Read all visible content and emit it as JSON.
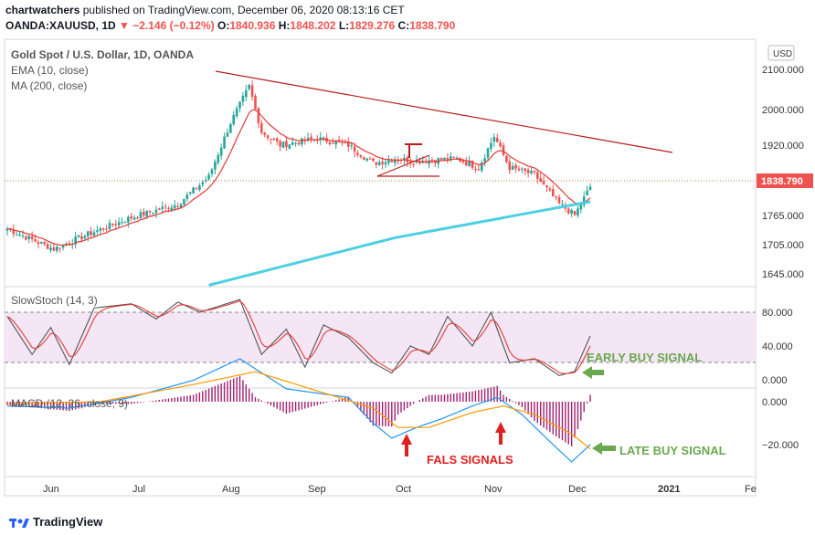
{
  "header": {
    "author": "chartwatchers",
    "published_text": "published on TradingView.com, December 06, 2020 08:13:16 CET",
    "symbol": "OANDA:XAUUSD, 1D",
    "change": "▼ −2.146 (−0.12%)",
    "o_label": "O:",
    "o_value": "1840.936",
    "h_label": "H:",
    "h_value": "1848.202",
    "l_label": "L:",
    "l_value": "1829.276",
    "c_label": "C:",
    "c_value": "1838.790"
  },
  "legend": {
    "title": "Gold Spot / U.S. Dollar, 1D, OANDA",
    "ema": "EMA (10, close)",
    "ma": "MA (200, close)",
    "stoch": "SlowStoch (14, 3)",
    "macd": "MACD (12, 26, close, 9)"
  },
  "price_axis": {
    "unit_badge": "USD",
    "ticks": [
      "2100.000",
      "2000.000",
      "1920.000",
      "1838.790",
      "1765.000",
      "1705.000",
      "1645.000"
    ],
    "last_price": "1838.790",
    "last_price_color": "#ef5350"
  },
  "stoch_axis": {
    "ticks": [
      "80.000",
      "40.000",
      "0.000"
    ]
  },
  "macd_axis": {
    "ticks": [
      "0.000",
      "−20.000"
    ]
  },
  "time_axis": {
    "labels": [
      "Jun",
      "Jul",
      "Aug",
      "Sep",
      "Oct",
      "Nov",
      "Dec",
      "2021",
      "Fe"
    ]
  },
  "annotations": {
    "early": "EARLY BUY SIGNAL",
    "late": "LATE BUY SIGNAL",
    "false": "FALS SIGNALS",
    "green": "#6aa84f",
    "red": "#e02020"
  },
  "colors": {
    "up": "#26a69a",
    "down": "#ef5350",
    "ema": "#e53935",
    "ma": "#4dd0e1",
    "trend": "#b71c1c",
    "stoch_k": "#555555",
    "stoch_d": "#e53935",
    "macd": "#2196f3",
    "signal": "#ff9800",
    "hist": "#a0206f"
  },
  "chart_data": {
    "type": "candlestick",
    "title": "Gold Spot / U.S. Dollar, 1D, OANDA",
    "price_range": [
      1600,
      2140
    ],
    "close_keyframes": [
      {
        "t": 0,
        "v": 1745
      },
      {
        "t": 10,
        "v": 1715
      },
      {
        "t": 15,
        "v": 1700
      },
      {
        "t": 25,
        "v": 1730
      },
      {
        "t": 40,
        "v": 1770
      },
      {
        "t": 55,
        "v": 1800
      },
      {
        "t": 65,
        "v": 1860
      },
      {
        "t": 72,
        "v": 1980
      },
      {
        "t": 78,
        "v": 2060
      },
      {
        "t": 82,
        "v": 1960
      },
      {
        "t": 88,
        "v": 1930
      },
      {
        "t": 100,
        "v": 1945
      },
      {
        "t": 110,
        "v": 1930
      },
      {
        "t": 118,
        "v": 1890
      },
      {
        "t": 125,
        "v": 1900
      },
      {
        "t": 132,
        "v": 1895
      },
      {
        "t": 145,
        "v": 1900
      },
      {
        "t": 152,
        "v": 1880
      },
      {
        "t": 157,
        "v": 1950
      },
      {
        "t": 162,
        "v": 1880
      },
      {
        "t": 170,
        "v": 1865
      },
      {
        "t": 178,
        "v": 1800
      },
      {
        "t": 183,
        "v": 1775
      },
      {
        "t": 188,
        "v": 1838
      }
    ],
    "ma200_keyframes": [
      {
        "t": 65,
        "v": 1620
      },
      {
        "t": 125,
        "v": 1725
      },
      {
        "t": 188,
        "v": 1805
      }
    ],
    "stoch_keyframes": [
      {
        "t": 0,
        "v": 75
      },
      {
        "t": 8,
        "v": 30
      },
      {
        "t": 14,
        "v": 62
      },
      {
        "t": 20,
        "v": 18
      },
      {
        "t": 28,
        "v": 85
      },
      {
        "t": 40,
        "v": 90
      },
      {
        "t": 48,
        "v": 72
      },
      {
        "t": 55,
        "v": 92
      },
      {
        "t": 62,
        "v": 80
      },
      {
        "t": 75,
        "v": 95
      },
      {
        "t": 82,
        "v": 30
      },
      {
        "t": 90,
        "v": 60
      },
      {
        "t": 96,
        "v": 15
      },
      {
        "t": 102,
        "v": 65
      },
      {
        "t": 110,
        "v": 50
      },
      {
        "t": 118,
        "v": 20
      },
      {
        "t": 124,
        "v": 8
      },
      {
        "t": 130,
        "v": 40
      },
      {
        "t": 136,
        "v": 30
      },
      {
        "t": 142,
        "v": 75
      },
      {
        "t": 150,
        "v": 40
      },
      {
        "t": 156,
        "v": 80
      },
      {
        "t": 162,
        "v": 20
      },
      {
        "t": 170,
        "v": 25
      },
      {
        "t": 178,
        "v": 5
      },
      {
        "t": 183,
        "v": 10
      },
      {
        "t": 188,
        "v": 52
      }
    ],
    "macd_keyframes": [
      {
        "t": 0,
        "v": -2
      },
      {
        "t": 20,
        "v": -3
      },
      {
        "t": 40,
        "v": 2
      },
      {
        "t": 60,
        "v": 10
      },
      {
        "t": 75,
        "v": 20
      },
      {
        "t": 90,
        "v": 6
      },
      {
        "t": 110,
        "v": 2
      },
      {
        "t": 118,
        "v": -10
      },
      {
        "t": 124,
        "v": -17
      },
      {
        "t": 132,
        "v": -12
      },
      {
        "t": 140,
        "v": -8
      },
      {
        "t": 150,
        "v": -2
      },
      {
        "t": 158,
        "v": 2
      },
      {
        "t": 166,
        "v": -6
      },
      {
        "t": 176,
        "v": -20
      },
      {
        "t": 182,
        "v": -28
      },
      {
        "t": 188,
        "v": -20
      }
    ],
    "signal_keyframes": [
      {
        "t": 0,
        "v": -1
      },
      {
        "t": 30,
        "v": 0
      },
      {
        "t": 60,
        "v": 8
      },
      {
        "t": 80,
        "v": 14
      },
      {
        "t": 100,
        "v": 5
      },
      {
        "t": 118,
        "v": -3
      },
      {
        "t": 126,
        "v": -12
      },
      {
        "t": 136,
        "v": -12
      },
      {
        "t": 150,
        "v": -5
      },
      {
        "t": 160,
        "v": -2
      },
      {
        "t": 170,
        "v": -6
      },
      {
        "t": 182,
        "v": -15
      },
      {
        "t": 188,
        "v": -22
      }
    ]
  }
}
